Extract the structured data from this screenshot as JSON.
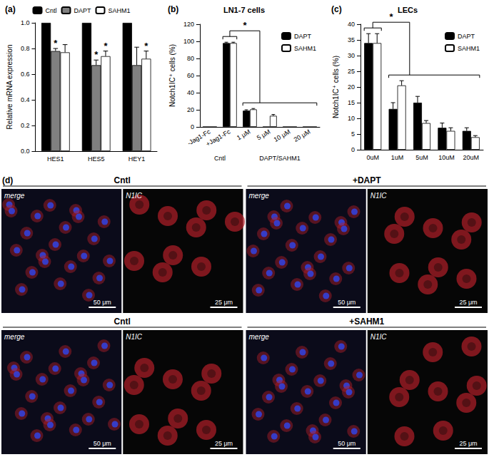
{
  "chart_data": [
    {
      "type": "bar",
      "panel_label": "(a)",
      "y_label": "Relative mRNA expression",
      "categories": [
        "HES1",
        "HES5",
        "HEY1"
      ],
      "series": [
        {
          "name": "Cntl",
          "color": "#000000",
          "values": [
            1,
            1,
            1
          ],
          "errors": [
            0,
            0,
            0
          ]
        },
        {
          "name": "DAPT",
          "color": "#808080",
          "values": [
            0.78,
            0.67,
            0.67
          ],
          "errors": [
            0.02,
            0.04,
            0.14
          ]
        },
        {
          "name": "SAHM1",
          "color": "#ffffff",
          "values": [
            0.77,
            0.74,
            0.72
          ],
          "errors": [
            0.06,
            0.04,
            0.06
          ]
        }
      ],
      "ylim": [
        0,
        1
      ],
      "yticks": [
        {
          "value": 0,
          "label": "0.0"
        },
        {
          "value": 0.2,
          "label": "0.2"
        },
        {
          "value": 0.4,
          "label": "0.4"
        },
        {
          "value": 0.6,
          "label": "0.6"
        },
        {
          "value": 0.8,
          "label": "0.8"
        },
        {
          "value": 1,
          "label": "1.0"
        }
      ],
      "grid": false,
      "legend": "top",
      "annotations": [
        {
          "text": "*",
          "category": "HES1",
          "series": "DAPT"
        },
        {
          "text": "*",
          "category": "HES5",
          "series": "DAPT"
        },
        {
          "text": "*",
          "category": "HES5",
          "series": "SAHM1"
        },
        {
          "text": "*",
          "category": "HEY1",
          "series": "SAHM1"
        }
      ]
    },
    {
      "type": "bar",
      "panel_label": "(b)",
      "title": "LN1-7 cells",
      "y_label": "Notch1IC⁺ cells (%)",
      "categories": [
        "-Jag1-Fc",
        "+Jag1-Fc",
        "1 μM",
        "5 μM",
        "10 μM",
        "20 μM"
      ],
      "category_groups": [
        {
          "label": "Cntl",
          "from": "-Jag1-Fc",
          "to": "+Jag1-Fc"
        },
        {
          "label": "DAPT/SAHM1",
          "from": "1 μM",
          "to": "20 μM"
        }
      ],
      "series": [
        {
          "name": "DAPT",
          "color": "#000000",
          "values": [
            0,
            98,
            19,
            0,
            0,
            0
          ],
          "errors": [
            0,
            1,
            1,
            0,
            0,
            0
          ]
        },
        {
          "name": "SAHM1",
          "color": "#ffffff",
          "values": [
            0,
            98,
            20.5,
            13,
            0,
            0
          ],
          "errors": [
            0,
            1,
            1,
            1.5,
            0,
            0
          ]
        }
      ],
      "ylim": [
        0,
        120
      ],
      "yticks": [
        0,
        20,
        40,
        60,
        80,
        100,
        120
      ],
      "grid": false,
      "legend": "top-right",
      "annotations": [
        {
          "text": "*",
          "from": "+Jag1-Fc",
          "to": [
            "1 μM",
            "20 μM"
          ]
        }
      ]
    },
    {
      "type": "bar",
      "panel_label": "(c)",
      "title": "LECs",
      "y_label": "Notch1IC⁺ cells (%)",
      "categories": [
        "0uM",
        "1uM",
        "5uM",
        "10uM",
        "20uM"
      ],
      "series": [
        {
          "name": "DAPT",
          "color": "#000000",
          "values": [
            34,
            13,
            15,
            7,
            6
          ],
          "errors": [
            3,
            2,
            2,
            1.5,
            1
          ]
        },
        {
          "name": "SAHM1",
          "color": "#ffffff",
          "values": [
            34,
            20.5,
            8.5,
            6,
            4
          ],
          "errors": [
            3,
            1.5,
            0.8,
            1,
            0.5
          ]
        }
      ],
      "ylim": [
        0,
        40
      ],
      "yticks": [
        0,
        5,
        10,
        15,
        20,
        25,
        30,
        35,
        40
      ],
      "grid": false,
      "legend": "top-right",
      "annotations": [
        {
          "text": "*",
          "from": "0uM",
          "to": [
            "1uM",
            "20uM"
          ]
        }
      ]
    }
  ],
  "image_panels": {
    "panel_label": "(d)",
    "rows": [
      [
        {
          "title": "Cntl",
          "images": [
            {
              "label": "merge",
              "scale_bar": "50 μm"
            },
            {
              "label": "N1IC",
              "scale_bar": "25 μm"
            }
          ]
        },
        {
          "title": "+DAPT",
          "images": [
            {
              "label": "merge",
              "scale_bar": "50 μm"
            },
            {
              "label": "N1IC",
              "scale_bar": "25 μm"
            }
          ]
        }
      ],
      [
        {
          "title": "Cntl",
          "images": [
            {
              "label": "merge",
              "scale_bar": "50 μm"
            },
            {
              "label": "N1IC",
              "scale_bar": "25 μm"
            }
          ]
        },
        {
          "title": "+SAHM1",
          "images": [
            {
              "label": "merge",
              "scale_bar": "50 μm"
            },
            {
              "label": "N1IC",
              "scale_bar": "25 μm"
            }
          ]
        }
      ]
    ]
  }
}
